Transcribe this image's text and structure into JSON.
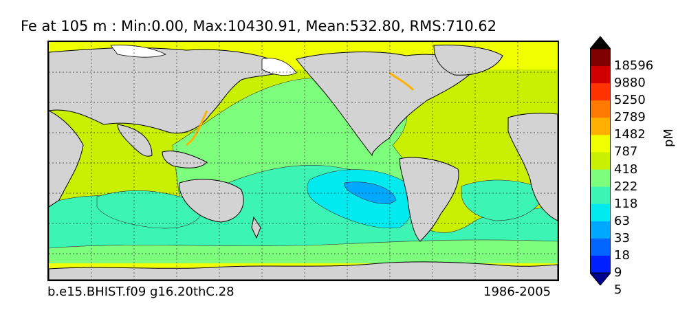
{
  "title": "Fe at 105 m : Min:0.00, Max:10430.91, Mean:532.80, RMS:710.62",
  "footer": {
    "case": "b.e15.BHIST.f09 g16.20thC.28",
    "period": "1986-2005"
  },
  "colorbar": {
    "unit": "pM",
    "levels": [
      "18596",
      "9880",
      "5250",
      "2789",
      "1482",
      "787",
      "418",
      "222",
      "118",
      "63",
      "33",
      "18",
      "9",
      "5"
    ],
    "colors": [
      "#7f0000",
      "#d10000",
      "#ff3300",
      "#ff7a00",
      "#ffb000",
      "#f0ff00",
      "#c8f000",
      "#7dff7d",
      "#3cf5b4",
      "#00eaf0",
      "#00a8ff",
      "#0066ff",
      "#0020ff",
      "#000090",
      "#000000"
    ]
  },
  "map": {
    "land_color": "#d3d3d3",
    "ice_color": "#ffffff",
    "projection": "cylindrical",
    "grid": "dotted",
    "longitude_range": [
      20,
      380
    ],
    "latitude_range": [
      -80,
      90
    ]
  }
}
